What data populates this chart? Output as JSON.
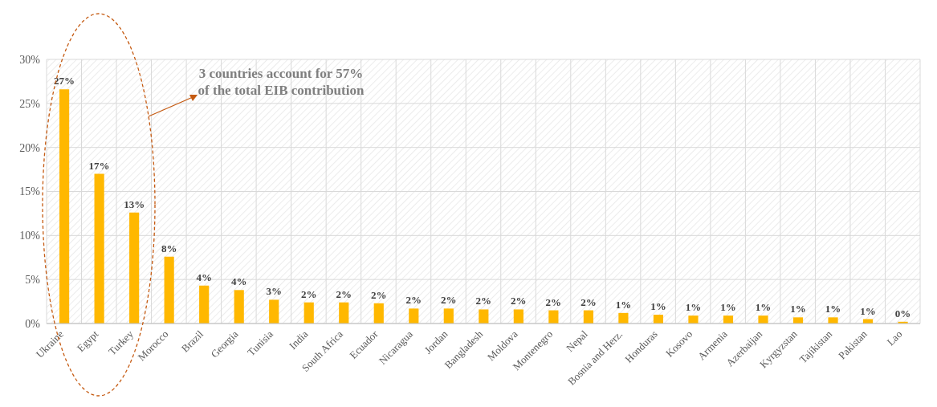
{
  "chart_data": {
    "type": "bar",
    "categories": [
      "Ukraine",
      "Egypt",
      "Turkey",
      "Morocco",
      "Brazil",
      "Georgia",
      "Tunisia",
      "India",
      "South Africa",
      "Ecuador",
      "Nicaragua",
      "Jordan",
      "Bangladesh",
      "Moldova",
      "Montenegro",
      "Nepal",
      "Bosnia and Herz.",
      "Honduras",
      "Kosovo",
      "Armenia",
      "Azerbaijan",
      "Kyrgyzstan",
      "Tajikistan",
      "Pakistan",
      "Lao"
    ],
    "values": [
      26.6,
      17.0,
      12.6,
      7.6,
      4.3,
      3.8,
      2.7,
      2.4,
      2.4,
      2.3,
      1.7,
      1.7,
      1.6,
      1.6,
      1.5,
      1.5,
      1.2,
      1.0,
      0.9,
      0.9,
      0.9,
      0.7,
      0.7,
      0.5,
      0.2
    ],
    "value_labels": [
      "27%",
      "17%",
      "13%",
      "8%",
      "4%",
      "4%",
      "3%",
      "2%",
      "2%",
      "2%",
      "2%",
      "2%",
      "2%",
      "2%",
      "2%",
      "2%",
      "1%",
      "1%",
      "1%",
      "1%",
      "1%",
      "1%",
      "1%",
      "1%",
      "0%"
    ],
    "color": "#ffb800",
    "ylim": [
      0,
      30
    ],
    "yticks": [
      {
        "value": 0,
        "label": "0%"
      },
      {
        "value": 5,
        "label": "5%"
      },
      {
        "value": 10,
        "label": "10%"
      },
      {
        "value": 15,
        "label": "15%"
      },
      {
        "value": 20,
        "label": "20%"
      },
      {
        "value": 25,
        "label": "25%"
      },
      {
        "value": 30,
        "label": "30%"
      }
    ],
    "grid": true,
    "annotations": [
      "3 countries account for 57% of the total EIB contribution"
    ]
  }
}
